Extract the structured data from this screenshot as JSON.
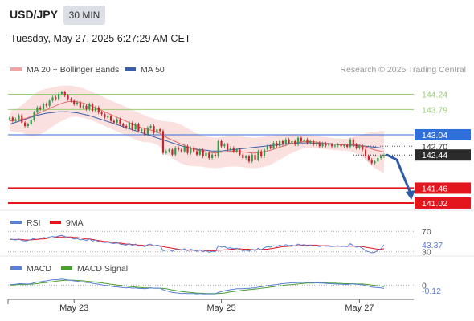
{
  "header": {
    "symbol": "USD/JPY",
    "timeframe": "30 MIN",
    "datetime": "Tuesday, May 27, 2025 6:27:29 AM CET"
  },
  "watermark": "Research © 2025 Trading Central",
  "colors": {
    "candle_up": "#2e9e4a",
    "candle_down": "#c8242c",
    "ma20": "#e56b6b",
    "bollinger_fill": "#f9d6d6",
    "ma50": "#3a5fa8",
    "resistance": "#9acd74",
    "pivot": "#2f6fd9",
    "support": "#e3161d",
    "current": "#333333",
    "rsi": "#5b7fd6",
    "rsi_ma": "#e3161d",
    "macd": "#5b7fd6",
    "macd_signal": "#4aa02c",
    "forecast_arrow": "#2c5ba4"
  },
  "chart_data": [
    {
      "type": "candlestick",
      "legend": [
        "MA 20 + Bollinger Bands",
        "MA 50"
      ],
      "legend_placement": "top-left",
      "ylim": [
        140.9,
        144.75
      ],
      "levels": [
        {
          "value": 144.24,
          "label": "144.24",
          "kind": "resistance"
        },
        {
          "value": 143.79,
          "label": "143.79",
          "kind": "resistance"
        },
        {
          "value": 143.04,
          "label": "143.04",
          "kind": "pivot"
        },
        {
          "value": 142.7,
          "label": "142.70",
          "kind": "marker"
        },
        {
          "value": 142.44,
          "label": "142.44",
          "kind": "current"
        },
        {
          "value": 141.46,
          "label": "141.46",
          "kind": "support"
        },
        {
          "value": 141.02,
          "label": "141.02",
          "kind": "support"
        }
      ],
      "close": [
        143.55,
        143.45,
        143.5,
        143.62,
        143.4,
        143.3,
        143.35,
        143.48,
        143.7,
        143.85,
        143.8,
        143.95,
        143.9,
        144.05,
        144.15,
        144.1,
        144.25,
        144.3,
        144.2,
        144.1,
        144.05,
        143.95,
        144.0,
        143.85,
        143.9,
        143.8,
        143.95,
        143.75,
        143.85,
        143.7,
        143.65,
        143.55,
        143.6,
        143.45,
        143.4,
        143.5,
        143.35,
        143.3,
        143.25,
        143.4,
        143.2,
        143.35,
        143.15,
        143.2,
        143.05,
        143.25,
        143.3,
        143.1,
        143.2,
        143.15,
        142.5,
        142.55,
        142.6,
        142.45,
        142.65,
        142.6,
        142.55,
        142.7,
        142.5,
        142.65,
        142.55,
        142.45,
        142.6,
        142.4,
        142.5,
        142.35,
        142.45,
        142.4,
        142.85,
        142.7,
        142.75,
        142.6,
        142.65,
        142.55,
        142.6,
        142.45,
        142.35,
        142.4,
        142.25,
        142.45,
        142.3,
        142.55,
        142.4,
        142.6,
        142.7,
        142.65,
        142.8,
        142.7,
        142.85,
        142.75,
        142.9,
        142.8,
        142.85,
        142.75,
        142.95,
        142.85,
        142.9,
        142.8,
        142.85,
        142.75,
        142.8,
        142.7,
        142.78,
        142.72,
        142.75,
        142.7,
        142.72,
        142.75,
        142.7,
        142.73,
        142.68,
        142.9,
        142.75,
        142.65,
        142.7,
        142.6,
        142.4,
        142.3,
        142.2,
        142.25,
        142.35,
        142.4,
        142.44
      ],
      "ma20": [
        143.45,
        143.46,
        143.47,
        143.48,
        143.5,
        143.52,
        143.55,
        143.58,
        143.62,
        143.66,
        143.7,
        143.74,
        143.78,
        143.82,
        143.86,
        143.9,
        143.94,
        143.97,
        144.0,
        144.02,
        144.03,
        144.03,
        144.02,
        144.0,
        143.98,
        143.95,
        143.92,
        143.88,
        143.84,
        143.8,
        143.76,
        143.72,
        143.68,
        143.64,
        143.6,
        143.56,
        143.52,
        143.48,
        143.44,
        143.4,
        143.36,
        143.32,
        143.28,
        143.25,
        143.22,
        143.2,
        143.18,
        143.15,
        143.12,
        143.08,
        143.02,
        142.97,
        142.92,
        142.88,
        142.84,
        142.8,
        142.76,
        142.72,
        142.68,
        142.65,
        142.62,
        142.59,
        142.57,
        142.55,
        142.53,
        142.52,
        142.51,
        142.5,
        142.51,
        142.52,
        142.53,
        142.54,
        142.55,
        142.55,
        142.55,
        142.54,
        142.53,
        142.52,
        142.51,
        142.5,
        142.5,
        142.51,
        142.52,
        142.54,
        142.56,
        142.58,
        142.61,
        142.64,
        142.67,
        142.7,
        142.73,
        142.76,
        142.78,
        142.8,
        142.82,
        142.83,
        142.84,
        142.84,
        142.84,
        142.83,
        142.82,
        142.81,
        142.8,
        142.79,
        142.78,
        142.77,
        142.76,
        142.76,
        142.75,
        142.75,
        142.74,
        142.75,
        142.75,
        142.74,
        142.73,
        142.71,
        142.68,
        142.65,
        142.62,
        142.59,
        142.57,
        142.55,
        142.53
      ],
      "bb_upper": [
        143.75,
        143.77,
        143.8,
        143.85,
        143.92,
        144.0,
        144.08,
        144.16,
        144.24,
        144.3,
        144.35,
        144.38,
        144.4,
        144.42,
        144.44,
        144.46,
        144.48,
        144.49,
        144.5,
        144.5,
        144.49,
        144.48,
        144.46,
        144.44,
        144.41,
        144.38,
        144.34,
        144.3,
        144.26,
        144.22,
        144.18,
        144.14,
        144.1,
        144.06,
        144.02,
        143.98,
        143.94,
        143.9,
        143.86,
        143.82,
        143.78,
        143.74,
        143.7,
        143.66,
        143.62,
        143.58,
        143.55,
        143.52,
        143.49,
        143.47,
        143.45,
        143.44,
        143.43,
        143.42,
        143.4,
        143.37,
        143.33,
        143.28,
        143.23,
        143.18,
        143.13,
        143.08,
        143.04,
        143.01,
        142.99,
        142.97,
        142.96,
        142.95,
        142.96,
        142.97,
        142.98,
        142.99,
        143.0,
        143.0,
        143.0,
        142.99,
        142.98,
        142.97,
        142.96,
        142.95,
        142.95,
        142.96,
        142.97,
        142.98,
        143.0,
        143.01,
        143.02,
        143.03,
        143.04,
        143.05,
        143.06,
        143.06,
        143.06,
        143.06,
        143.06,
        143.05,
        143.04,
        143.03,
        143.02,
        143.01,
        143.0,
        142.99,
        142.98,
        142.97,
        142.96,
        142.95,
        142.94,
        142.94,
        142.93,
        142.93,
        142.92,
        142.95,
        142.98,
        143.0,
        143.02,
        143.05,
        143.08,
        143.1,
        143.12,
        143.13,
        143.14,
        143.15,
        143.15
      ],
      "bb_lower": [
        143.15,
        143.14,
        143.13,
        143.12,
        143.1,
        143.06,
        143.02,
        143.0,
        143.0,
        143.02,
        143.05,
        143.1,
        143.16,
        143.22,
        143.28,
        143.34,
        143.4,
        143.45,
        143.5,
        143.54,
        143.57,
        143.58,
        143.58,
        143.56,
        143.54,
        143.52,
        143.5,
        143.46,
        143.42,
        143.38,
        143.34,
        143.3,
        143.26,
        143.22,
        143.18,
        143.14,
        143.1,
        143.06,
        143.02,
        142.98,
        142.94,
        142.9,
        142.86,
        142.84,
        142.82,
        142.82,
        142.81,
        142.78,
        142.75,
        142.68,
        142.58,
        142.49,
        142.41,
        142.34,
        142.28,
        142.23,
        142.19,
        142.16,
        142.13,
        142.12,
        142.11,
        142.1,
        142.1,
        142.09,
        142.07,
        142.07,
        142.06,
        142.05,
        142.06,
        142.07,
        142.08,
        142.09,
        142.1,
        142.1,
        142.1,
        142.09,
        142.08,
        142.07,
        142.06,
        142.05,
        142.05,
        142.06,
        142.07,
        142.1,
        142.12,
        142.15,
        142.2,
        142.25,
        142.3,
        142.35,
        142.4,
        142.46,
        142.5,
        142.54,
        142.58,
        142.61,
        142.64,
        142.65,
        142.66,
        142.65,
        142.64,
        142.63,
        142.62,
        142.61,
        142.6,
        142.59,
        142.58,
        142.58,
        142.57,
        142.57,
        142.56,
        142.55,
        142.52,
        142.48,
        142.44,
        142.37,
        142.28,
        142.2,
        142.12,
        142.05,
        142.0,
        141.95,
        141.91
      ],
      "ma50": [
        143.35,
        143.38,
        143.41,
        143.44,
        143.47,
        143.5,
        143.53,
        143.56,
        143.59,
        143.62,
        143.64,
        143.66,
        143.68,
        143.69,
        143.7,
        143.71,
        143.72,
        143.72,
        143.72,
        143.72,
        143.71,
        143.7,
        143.69,
        143.67,
        143.65,
        143.63,
        143.61,
        143.58,
        143.55,
        143.52,
        143.49,
        143.46,
        143.43,
        143.4,
        143.37,
        143.34,
        143.31,
        143.28,
        143.25,
        143.22,
        143.19,
        143.16,
        143.13,
        143.1,
        143.07,
        143.04,
        143.01,
        142.98,
        142.95,
        142.92,
        142.89,
        142.86,
        142.83,
        142.8,
        142.77,
        142.74,
        142.71,
        142.69,
        142.67,
        142.65,
        142.63,
        142.61,
        142.6,
        142.59,
        142.58,
        142.57,
        142.56,
        142.56,
        142.56,
        142.56,
        142.57,
        142.58,
        142.59,
        142.6,
        142.61,
        142.62,
        142.63,
        142.64,
        142.65,
        142.66,
        142.67,
        142.68,
        142.69,
        142.7,
        142.71,
        142.72,
        142.73,
        142.74,
        142.75,
        142.76,
        142.77,
        142.78,
        142.79,
        142.79,
        142.8,
        142.8,
        142.8,
        142.8,
        142.8,
        142.79,
        142.79,
        142.78,
        142.78,
        142.77,
        142.77,
        142.76,
        142.76,
        142.75,
        142.75,
        142.74,
        142.74,
        142.73,
        142.73,
        142.72,
        142.72,
        142.71,
        142.7,
        142.69,
        142.68,
        142.67,
        142.66,
        142.65,
        142.64
      ]
    },
    {
      "type": "line",
      "legend": [
        "RSI",
        "9MA"
      ],
      "legend_placement": "top-left",
      "ylim": [
        28,
        75
      ],
      "levels": [
        {
          "value": 70,
          "label": "70"
        },
        {
          "value": 30,
          "label": "30"
        }
      ],
      "current_label": "43.37",
      "rsi": [
        55,
        54,
        53,
        55,
        52,
        51,
        52,
        54,
        56,
        57,
        56,
        58,
        57,
        59,
        60,
        59,
        61,
        62,
        60,
        58,
        57,
        55,
        56,
        53,
        54,
        52,
        55,
        51,
        53,
        50,
        49,
        48,
        49,
        47,
        46,
        48,
        45,
        44,
        43,
        46,
        42,
        45,
        41,
        42,
        40,
        44,
        45,
        41,
        43,
        42,
        32,
        33,
        34,
        31,
        35,
        34,
        33,
        36,
        32,
        35,
        33,
        31,
        34,
        30,
        32,
        29,
        31,
        30,
        42,
        39,
        40,
        37,
        38,
        36,
        37,
        34,
        32,
        33,
        31,
        35,
        32,
        37,
        34,
        38,
        40,
        39,
        42,
        40,
        43,
        41,
        44,
        42,
        43,
        41,
        45,
        43,
        44,
        42,
        43,
        41,
        42,
        40,
        42,
        41,
        41,
        40,
        41,
        42,
        40,
        41,
        40,
        46,
        42,
        39,
        40,
        37,
        32,
        30,
        28,
        29,
        33,
        36,
        43.37
      ],
      "ma9": [
        54,
        54,
        54,
        54,
        54,
        53,
        53,
        53,
        54,
        54,
        55,
        55,
        56,
        57,
        57,
        58,
        59,
        59,
        59,
        59,
        59,
        58,
        58,
        57,
        56,
        55,
        55,
        54,
        53,
        52,
        51,
        50,
        50,
        49,
        48,
        47,
        47,
        46,
        45,
        45,
        44,
        44,
        43,
        43,
        42,
        42,
        42,
        42,
        42,
        41,
        40,
        39,
        38,
        37,
        36,
        35,
        34,
        34,
        33,
        33,
        33,
        33,
        33,
        33,
        32,
        32,
        32,
        32,
        33,
        33,
        34,
        34,
        35,
        35,
        36,
        36,
        35,
        35,
        35,
        34,
        34,
        34,
        34,
        35,
        35,
        36,
        37,
        38,
        39,
        40,
        40,
        41,
        41,
        42,
        42,
        42,
        43,
        43,
        43,
        43,
        43,
        42,
        42,
        42,
        42,
        41,
        41,
        41,
        41,
        41,
        41,
        41,
        41,
        41,
        41,
        40,
        39,
        38,
        37,
        36,
        35,
        35,
        36
      ]
    },
    {
      "type": "line",
      "legend": [
        "MACD",
        "MACD Signal"
      ],
      "legend_placement": "top-left",
      "ylim": [
        -0.45,
        0.35
      ],
      "levels": [
        {
          "value": 0,
          "label": "0"
        }
      ],
      "current_label": "-0.12",
      "macd": [
        0.02,
        0.02,
        0.03,
        0.05,
        0.05,
        0.04,
        0.04,
        0.05,
        0.08,
        0.11,
        0.12,
        0.14,
        0.15,
        0.17,
        0.19,
        0.19,
        0.2,
        0.21,
        0.2,
        0.18,
        0.17,
        0.15,
        0.14,
        0.12,
        0.11,
        0.09,
        0.09,
        0.06,
        0.05,
        0.03,
        0.01,
        -0.01,
        -0.02,
        -0.04,
        -0.06,
        -0.06,
        -0.08,
        -0.09,
        -0.1,
        -0.09,
        -0.11,
        -0.1,
        -0.12,
        -0.12,
        -0.13,
        -0.12,
        -0.1,
        -0.11,
        -0.11,
        -0.11,
        -0.16,
        -0.2,
        -0.23,
        -0.26,
        -0.27,
        -0.28,
        -0.3,
        -0.29,
        -0.3,
        -0.3,
        -0.3,
        -0.31,
        -0.3,
        -0.31,
        -0.31,
        -0.31,
        -0.31,
        -0.31,
        -0.26,
        -0.23,
        -0.2,
        -0.18,
        -0.16,
        -0.15,
        -0.13,
        -0.13,
        -0.13,
        -0.12,
        -0.12,
        -0.1,
        -0.1,
        -0.07,
        -0.06,
        -0.04,
        -0.02,
        -0.01,
        0.01,
        0.02,
        0.04,
        0.05,
        0.06,
        0.07,
        0.08,
        0.08,
        0.09,
        0.09,
        0.1,
        0.09,
        0.09,
        0.08,
        0.08,
        0.07,
        0.07,
        0.06,
        0.05,
        0.05,
        0.04,
        0.04,
        0.03,
        0.03,
        0.02,
        0.04,
        0.04,
        0.03,
        0.02,
        0.01,
        -0.02,
        -0.04,
        -0.07,
        -0.08,
        -0.09,
        -0.1,
        -0.12
      ],
      "signal": [
        0.0,
        0.0,
        0.01,
        0.02,
        0.02,
        0.02,
        0.03,
        0.03,
        0.04,
        0.05,
        0.07,
        0.08,
        0.09,
        0.11,
        0.12,
        0.14,
        0.15,
        0.16,
        0.17,
        0.17,
        0.17,
        0.17,
        0.16,
        0.16,
        0.15,
        0.14,
        0.13,
        0.12,
        0.11,
        0.09,
        0.08,
        0.06,
        0.05,
        0.03,
        0.02,
        0.0,
        -0.01,
        -0.03,
        -0.04,
        -0.05,
        -0.06,
        -0.07,
        -0.08,
        -0.09,
        -0.1,
        -0.1,
        -0.1,
        -0.11,
        -0.11,
        -0.11,
        -0.12,
        -0.13,
        -0.15,
        -0.17,
        -0.19,
        -0.21,
        -0.23,
        -0.24,
        -0.25,
        -0.26,
        -0.27,
        -0.28,
        -0.29,
        -0.29,
        -0.3,
        -0.3,
        -0.3,
        -0.3,
        -0.3,
        -0.29,
        -0.28,
        -0.26,
        -0.24,
        -0.23,
        -0.21,
        -0.2,
        -0.18,
        -0.17,
        -0.16,
        -0.15,
        -0.14,
        -0.13,
        -0.11,
        -0.1,
        -0.09,
        -0.07,
        -0.06,
        -0.04,
        -0.03,
        -0.02,
        -0.0,
        0.01,
        0.02,
        0.03,
        0.04,
        0.05,
        0.06,
        0.07,
        0.07,
        0.07,
        0.08,
        0.08,
        0.08,
        0.08,
        0.07,
        0.07,
        0.07,
        0.06,
        0.06,
        0.05,
        0.05,
        0.05,
        0.05,
        0.04,
        0.04,
        0.04,
        0.03,
        0.02,
        0.0,
        -0.01,
        -0.03,
        -0.04,
        -0.06
      ]
    }
  ],
  "x_axis": {
    "ticks": [
      {
        "index": 21,
        "label": "May 23"
      },
      {
        "index": 69,
        "label": "May 25"
      },
      {
        "index": 114,
        "label": "May 27"
      }
    ]
  }
}
